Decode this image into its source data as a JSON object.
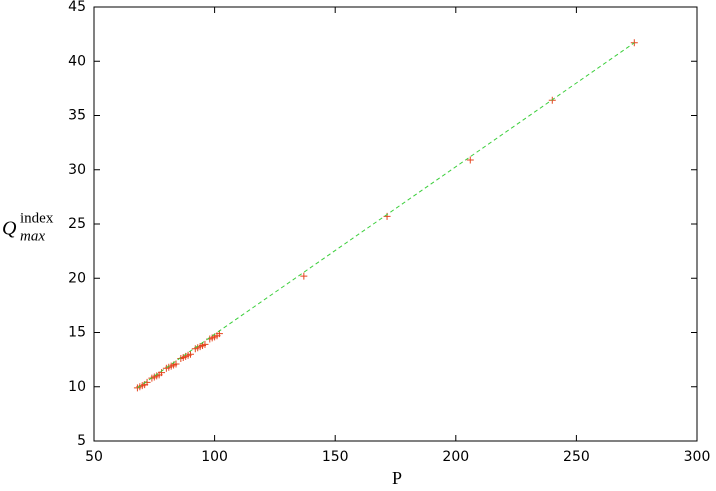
{
  "chart_data": {
    "type": "scatter",
    "x_label": "P",
    "y_label": {
      "base": "Q",
      "sup": "index",
      "sub": "max"
    },
    "xlim": [
      50,
      300
    ],
    "xticks": [
      50,
      100,
      150,
      200,
      250,
      300
    ],
    "ylim": [
      5,
      45
    ],
    "yticks": [
      5,
      10,
      15,
      20,
      25,
      30,
      35,
      40,
      45
    ],
    "series": [
      {
        "type": "scatter",
        "marker": "+",
        "color": "#e5451f",
        "x": [
          68,
          69,
          70,
          71,
          72,
          74,
          75,
          76,
          77,
          78,
          80,
          81,
          82,
          83,
          84,
          86,
          87,
          88,
          89,
          90,
          92,
          93,
          94,
          95,
          96,
          98,
          99,
          100,
          101,
          102,
          137,
          171.5,
          206,
          240,
          274
        ],
        "y": [
          9.9,
          10.0,
          10.1,
          10.2,
          10.4,
          10.8,
          10.9,
          11.0,
          11.1,
          11.3,
          11.7,
          11.8,
          11.9,
          12.0,
          12.1,
          12.6,
          12.7,
          12.8,
          12.9,
          13.0,
          13.5,
          13.6,
          13.7,
          13.8,
          13.9,
          14.4,
          14.5,
          14.6,
          14.7,
          14.9,
          20.2,
          25.7,
          30.9,
          36.4,
          41.7
        ]
      },
      {
        "type": "line",
        "dashed": true,
        "color": "#3ccf3c",
        "x": [
          68,
          274
        ],
        "y": [
          9.9,
          41.7
        ]
      }
    ]
  }
}
